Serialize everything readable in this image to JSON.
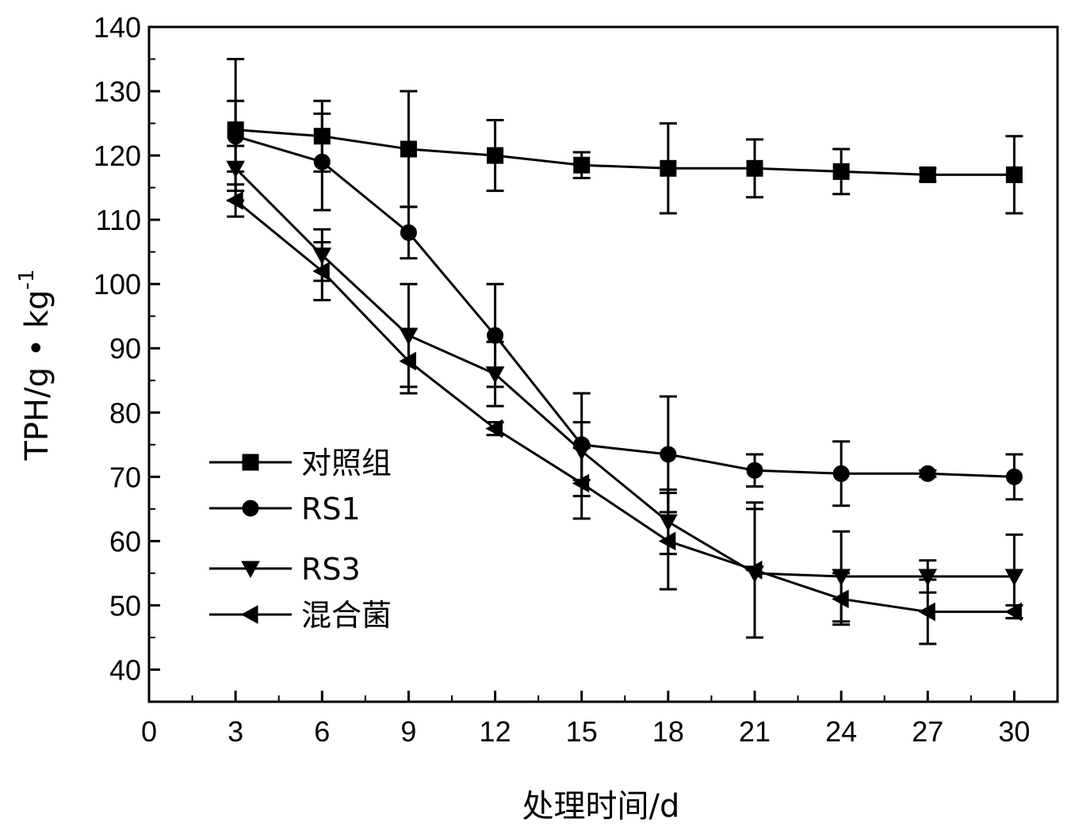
{
  "chart_data": {
    "type": "line",
    "title": "",
    "xlabel": "处理时间/d",
    "ylabel": "TPH/g • kg",
    "ylabel_superscript": "-1",
    "xlim": [
      0,
      31.5
    ],
    "ylim": [
      35,
      140
    ],
    "x_ticks": [
      0,
      3,
      6,
      9,
      12,
      15,
      18,
      21,
      24,
      27,
      30
    ],
    "y_ticks": [
      40,
      50,
      60,
      70,
      80,
      90,
      100,
      110,
      120,
      130,
      140
    ],
    "grid": false,
    "legend_position": "left-center",
    "x": [
      3,
      6,
      9,
      12,
      15,
      18,
      21,
      24,
      27,
      30
    ],
    "series": [
      {
        "name": "对照组",
        "marker": "square",
        "values": [
          124,
          123,
          121,
          120,
          118.5,
          118,
          118,
          117.5,
          117,
          117
        ],
        "errors": [
          11,
          5.5,
          9,
          5.5,
          2,
          7,
          4.5,
          3.5,
          1,
          6
        ]
      },
      {
        "name": "RS1",
        "marker": "circle",
        "values": [
          123,
          119,
          108,
          92,
          75,
          73.5,
          71,
          70.5,
          70.5,
          70
        ],
        "errors": [
          5.5,
          7.5,
          4,
          8,
          8,
          9,
          2.5,
          5,
          0.5,
          3.5
        ]
      },
      {
        "name": "RS3",
        "marker": "triangle-down",
        "values": [
          118,
          104.5,
          92,
          86,
          74,
          63,
          55,
          54.5,
          54.5,
          54.5
        ],
        "errors": [
          3.5,
          4,
          8,
          5,
          4.5,
          5,
          10,
          7,
          2.5,
          6.5
        ]
      },
      {
        "name": "混合菌",
        "marker": "triangle-left",
        "values": [
          113,
          102,
          88,
          77.5,
          69,
          60,
          55.5,
          51,
          49,
          49
        ],
        "errors": [
          2.5,
          4.5,
          5,
          1,
          5.5,
          7.5,
          10.5,
          4,
          5,
          1
        ]
      }
    ]
  }
}
